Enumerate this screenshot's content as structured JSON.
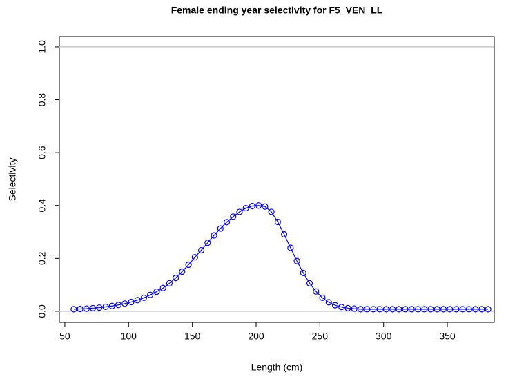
{
  "chart_data": {
    "type": "line",
    "title": "Female ending year selectivity for F5_VEN_LL",
    "x_label": "Length (cm)",
    "y_label": "Selectivity",
    "x": [
      57,
      62,
      67,
      72,
      77,
      82,
      87,
      92,
      97,
      102,
      107,
      112,
      117,
      122,
      127,
      132,
      137,
      142,
      147,
      152,
      157,
      162,
      167,
      172,
      177,
      182,
      187,
      192,
      197,
      202,
      207,
      212,
      217,
      222,
      227,
      232,
      237,
      242,
      247,
      252,
      257,
      262,
      267,
      272,
      277,
      282,
      287,
      292,
      297,
      302,
      307,
      312,
      317,
      322,
      327,
      332,
      337,
      342,
      347,
      352,
      357,
      362,
      367,
      372,
      377,
      382
    ],
    "series": [
      {
        "color": "#0000ff",
        "values": [
          0.008,
          0.009,
          0.01,
          0.012,
          0.014,
          0.017,
          0.02,
          0.024,
          0.029,
          0.035,
          0.042,
          0.051,
          0.062,
          0.074,
          0.088,
          0.106,
          0.126,
          0.15,
          0.176,
          0.204,
          0.231,
          0.259,
          0.287,
          0.313,
          0.337,
          0.358,
          0.376,
          0.39,
          0.398,
          0.4,
          0.396,
          0.376,
          0.338,
          0.291,
          0.24,
          0.19,
          0.145,
          0.106,
          0.075,
          0.051,
          0.034,
          0.023,
          0.016,
          0.012,
          0.01,
          0.008,
          0.008,
          0.008,
          0.008,
          0.008,
          0.008,
          0.008,
          0.008,
          0.008,
          0.008,
          0.008,
          0.008,
          0.008,
          0.008,
          0.008,
          0.008,
          0.008,
          0.008,
          0.008,
          0.008,
          0.008
        ]
      }
    ],
    "reference_lines": [
      0,
      1
    ],
    "reference_color": "#c8c8c8",
    "xlim": [
      45.7,
      386.8
    ],
    "ylim": [
      -0.042,
      1.039
    ],
    "xticks": [
      50,
      100,
      150,
      200,
      250,
      300,
      350
    ],
    "yticks": [
      {
        "value": 0,
        "label": "0.0"
      },
      {
        "value": 0.2,
        "label": "0.2"
      },
      {
        "value": 0.4,
        "label": "0.4"
      },
      {
        "value": 0.6,
        "label": "0.6"
      },
      {
        "value": 0.8,
        "label": "0.8"
      },
      {
        "value": 1,
        "label": "1.0"
      }
    ]
  }
}
